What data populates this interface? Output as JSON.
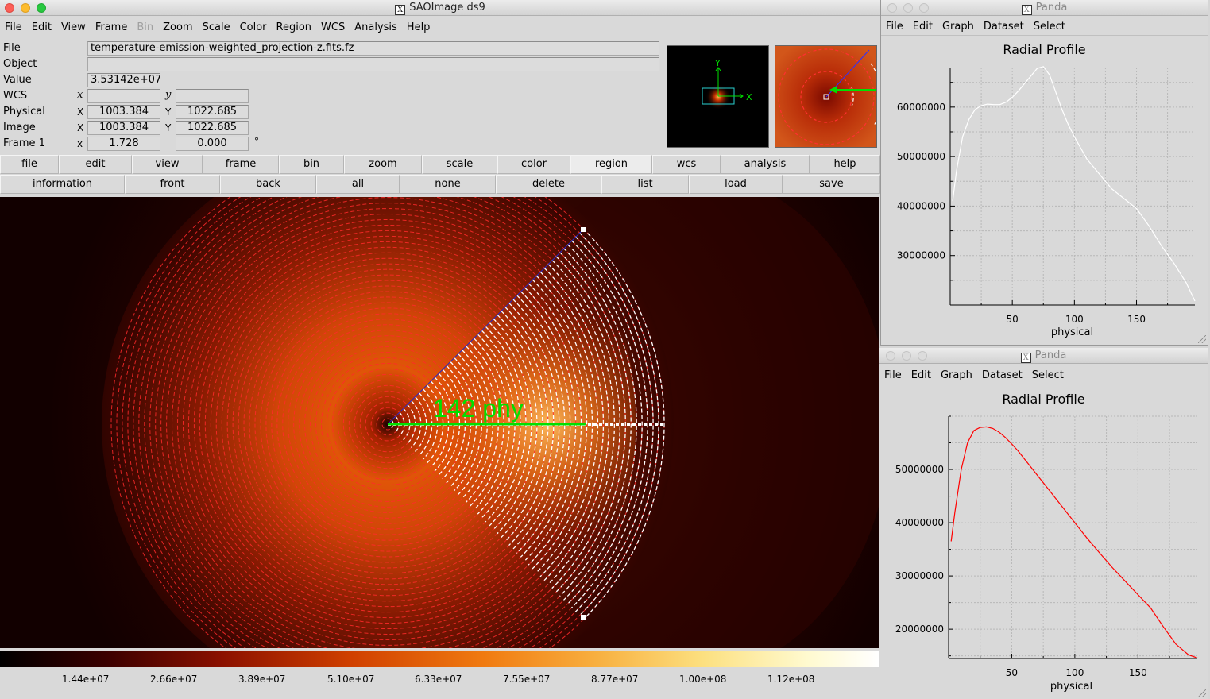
{
  "main_window": {
    "title": "SAOImage ds9",
    "menu": [
      "File",
      "Edit",
      "View",
      "Frame",
      "Bin",
      "Zoom",
      "Scale",
      "Color",
      "Region",
      "WCS",
      "Analysis",
      "Help"
    ],
    "menu_disabled": "Bin",
    "info": {
      "file_label": "File",
      "file_value": "temperature-emission-weighted_projection-z.fits.fz",
      "object_label": "Object",
      "object_value": "",
      "value_label": "Value",
      "value_value": "3.53142e+07",
      "wcs_label": "WCS",
      "wcs_x_label": "x",
      "wcs_y_label": "y",
      "wcs_x_value": "",
      "wcs_y_value": "",
      "physical_label": "Physical",
      "physical_x_label": "X",
      "physical_y_label": "Y",
      "physical_x": "1003.384",
      "physical_y": "1022.685",
      "image_label": "Image",
      "image_x_label": "X",
      "image_y_label": "Y",
      "image_x": "1003.384",
      "image_y": "1022.685",
      "frame_label": "Frame 1",
      "frame_x_label": "x",
      "frame_zoom": "1.728",
      "frame_angle": "0.000",
      "frame_angle_unit": "°"
    },
    "panner": {
      "x_label": "X",
      "y_label": "Y"
    },
    "buttons_row1": [
      "file",
      "edit",
      "view",
      "frame",
      "bin",
      "zoom",
      "scale",
      "color",
      "region",
      "wcs",
      "analysis",
      "help"
    ],
    "buttons_row1_active": "region",
    "buttons_row2": [
      "information",
      "front",
      "back",
      "all",
      "none",
      "delete",
      "list",
      "load",
      "save"
    ],
    "region_label": "142 phy",
    "colorbar_ticks": [
      "1.44e+07",
      "2.66e+07",
      "3.89e+07",
      "5.10e+07",
      "6.33e+07",
      "7.55e+07",
      "8.77e+07",
      "1.00e+08",
      "1.12e+08"
    ]
  },
  "panda_windows": [
    {
      "title": "Panda",
      "menu": [
        "File",
        "Edit",
        "Graph",
        "Dataset",
        "Select"
      ],
      "chart_data": {
        "type": "line",
        "title": "Radial Profile",
        "xlabel": "physical",
        "xlim": [
          0,
          197
        ],
        "ylim": [
          20000000,
          68000000
        ],
        "xticks": [
          50,
          100,
          150
        ],
        "yticks": [
          30000000,
          40000000,
          50000000,
          60000000
        ],
        "ytick_labels": [
          "30000000",
          "40000000",
          "50000000",
          "60000000"
        ],
        "line_color": "#ffffff",
        "grid": true,
        "series": [
          {
            "x": [
              2,
              5,
              10,
              15,
              20,
              25,
              30,
              35,
              40,
              45,
              50,
              55,
              60,
              65,
              70,
              75,
              80,
              85,
              90,
              95,
              100,
              110,
              120,
              130,
              140,
              150,
              160,
              170,
              180,
              190,
              197
            ],
            "values": [
              41000000,
              47000000,
              54000000,
              57500000,
              59500000,
              60300000,
              60600000,
              60500000,
              60500000,
              61000000,
              62000000,
              63300000,
              64800000,
              66300000,
              67800000,
              68200000,
              66500000,
              63000000,
              59500000,
              56500000,
              54000000,
              49500000,
              46500000,
              43500000,
              41500000,
              39500000,
              36000000,
              32000000,
              28500000,
              24500000,
              20800000
            ]
          }
        ]
      }
    },
    {
      "title": "Panda",
      "menu": [
        "File",
        "Edit",
        "Graph",
        "Dataset",
        "Select"
      ],
      "chart_data": {
        "type": "line",
        "title": "Radial Profile",
        "xlabel": "physical",
        "xlim": [
          0,
          197
        ],
        "ylim": [
          14500000,
          60000000
        ],
        "xticks": [
          50,
          100,
          150
        ],
        "yticks": [
          20000000,
          30000000,
          40000000,
          50000000
        ],
        "ytick_labels": [
          "20000000",
          "30000000",
          "40000000",
          "50000000"
        ],
        "line_color": "#ff0000",
        "grid": true,
        "series": [
          {
            "x": [
              2,
              5,
              10,
              15,
              20,
              25,
              30,
              35,
              40,
              45,
              50,
              55,
              60,
              70,
              80,
              90,
              100,
              110,
              120,
              130,
              140,
              150,
              160,
              170,
              180,
              190,
              197
            ],
            "values": [
              36500000,
              42000000,
              50000000,
              55000000,
              57300000,
              57900000,
              58000000,
              57700000,
              57000000,
              56000000,
              54800000,
              53500000,
              52000000,
              49000000,
              46000000,
              43000000,
              40000000,
              37000000,
              34200000,
              31500000,
              29000000,
              26500000,
              24000000,
              20500000,
              17200000,
              15200000,
              14600000
            ]
          }
        ]
      }
    }
  ]
}
